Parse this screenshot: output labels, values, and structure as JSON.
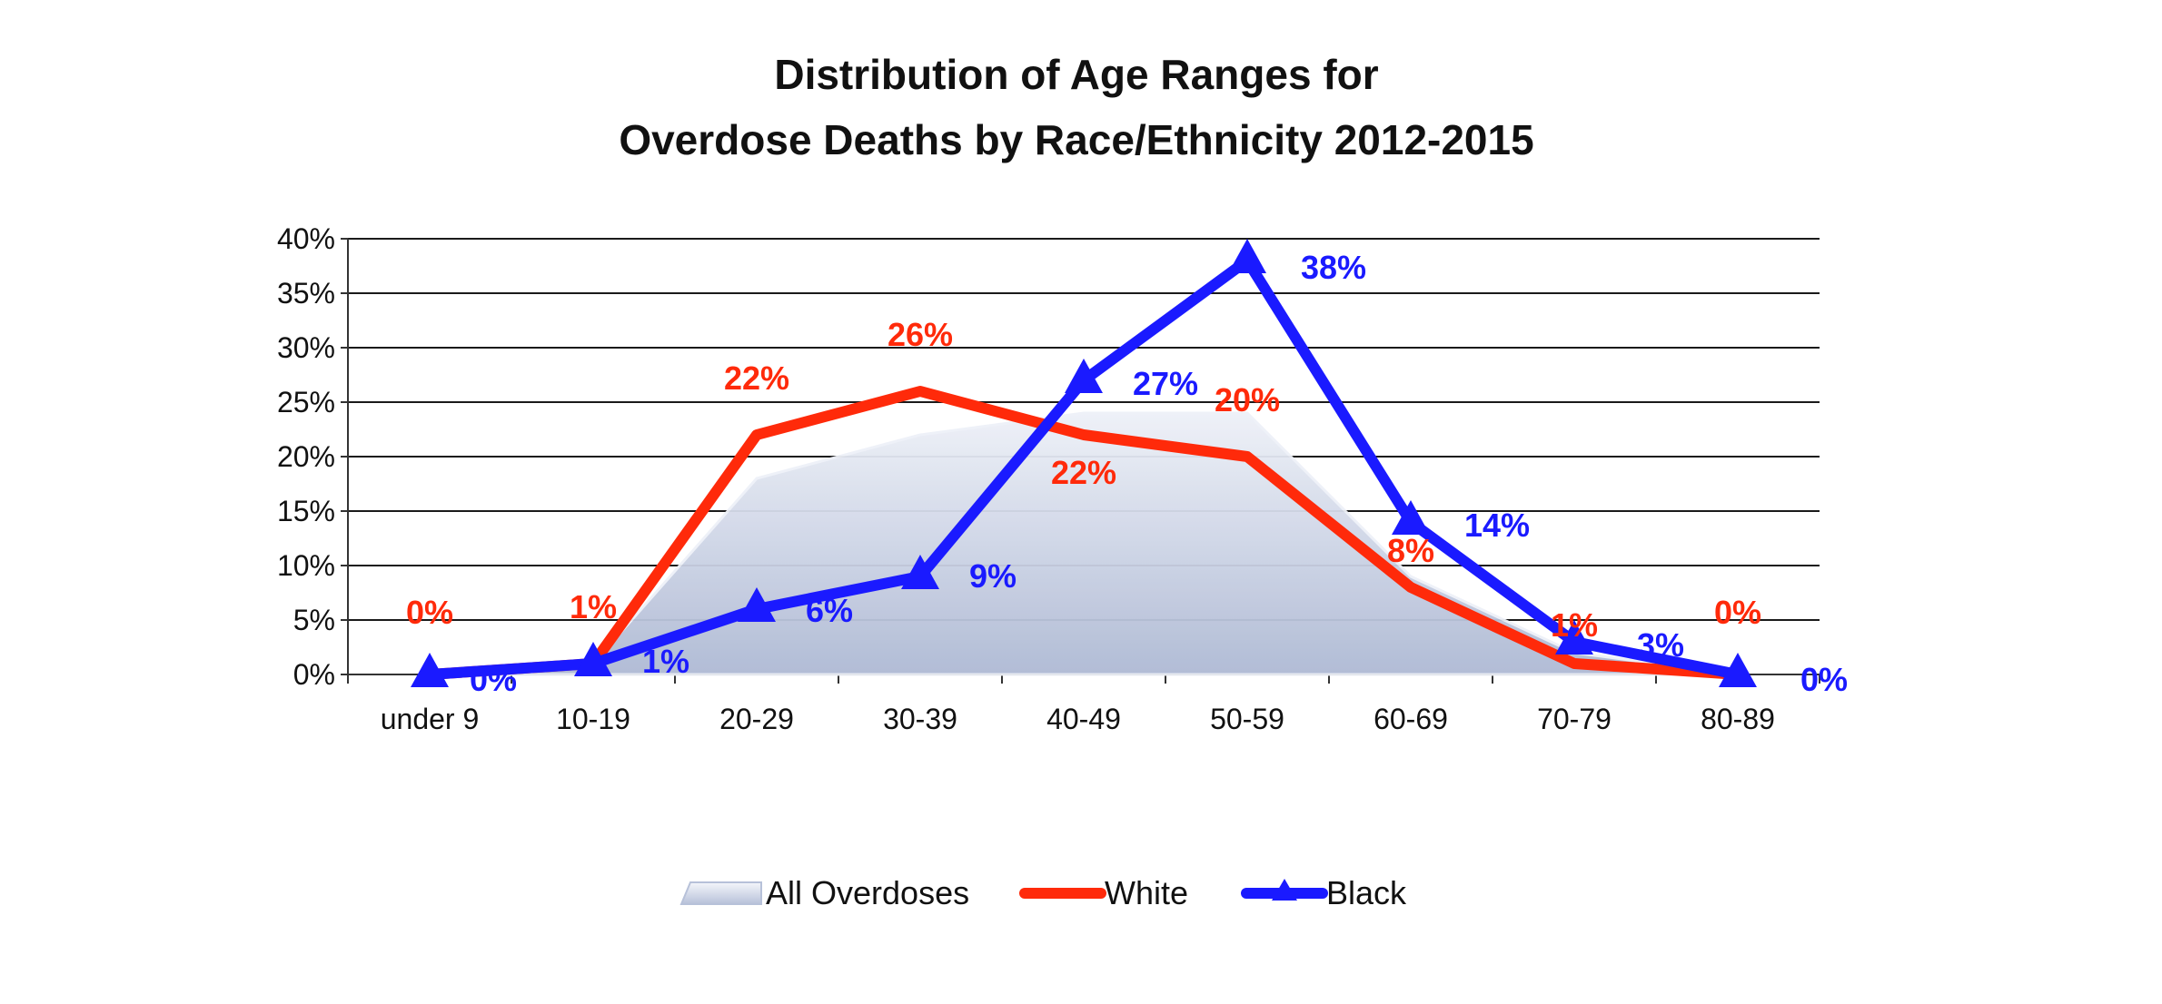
{
  "chart_data": {
    "type": "line",
    "title_lines": [
      "Distribution of Age Ranges for",
      "Overdose Deaths by Race/Ethnicity 2012-2015"
    ],
    "categories": [
      "under 9",
      "10-19",
      "20-29",
      "30-39",
      "40-49",
      "50-59",
      "60-69",
      "70-79",
      "80-89"
    ],
    "ylim": [
      0,
      40
    ],
    "yticks": [
      "0%",
      "5%",
      "10%",
      "15%",
      "20%",
      "25%",
      "30%",
      "35%",
      "40%"
    ],
    "grid": true,
    "legend_position": "bottom",
    "series": [
      {
        "name": "All Overdoses",
        "kind": "area",
        "values": [
          0,
          1,
          18,
          22,
          24,
          24,
          9,
          2,
          0
        ],
        "color": "#c5cde0",
        "labels": []
      },
      {
        "name": "White",
        "kind": "line",
        "values": [
          0,
          1,
          22,
          26,
          22,
          20,
          8,
          1,
          0
        ],
        "color": "#ff2a0a",
        "labels": [
          "0%",
          "1%",
          "22%",
          "26%",
          "22%",
          "20%",
          "8%",
          "1%",
          "0%"
        ]
      },
      {
        "name": "Black",
        "kind": "line",
        "marker": "triangle",
        "values": [
          0,
          1,
          6,
          9,
          27,
          38,
          14,
          3,
          0
        ],
        "color": "#1a1aff",
        "labels": [
          "0%",
          "1%",
          "6%",
          "9%",
          "27%",
          "38%",
          "14%",
          "3%",
          "0%"
        ]
      }
    ]
  }
}
